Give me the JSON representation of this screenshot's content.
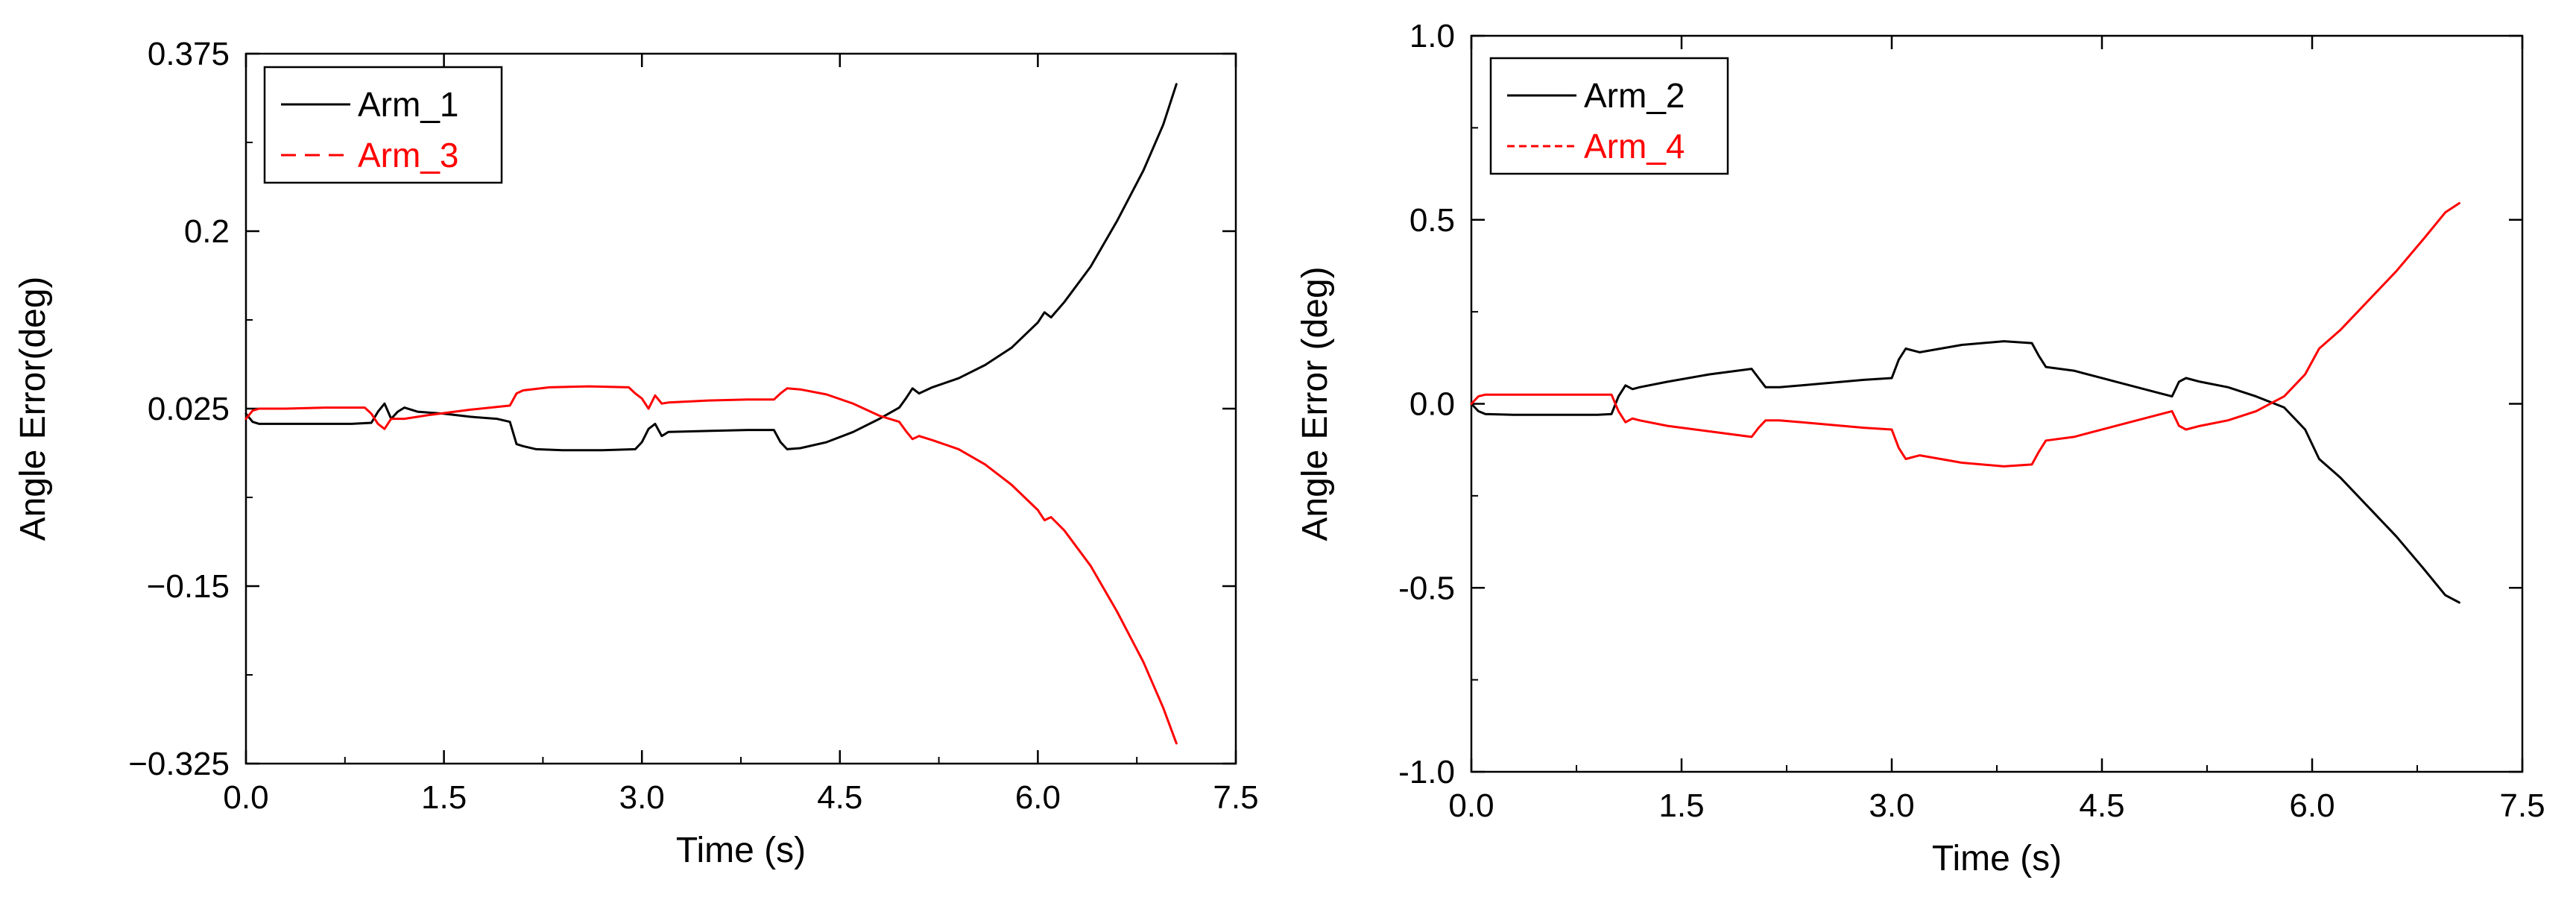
{
  "chart_data": [
    {
      "type": "line",
      "xlabel": "Time (s)",
      "ylabel": "Angle Error(deg)",
      "xlim": [
        0,
        7.5
      ],
      "ylim": [
        -0.325,
        0.375
      ],
      "xticks": [
        0.0,
        1.5,
        3.0,
        4.5,
        6.0,
        7.5
      ],
      "xtick_labels": [
        "0.0",
        "1.5",
        "3.0",
        "4.5",
        "6.0",
        "7.5"
      ],
      "yticks": [
        -0.325,
        -0.15,
        0.025,
        0.2,
        0.375
      ],
      "ytick_labels": [
        "−0.325",
        "−0.15",
        "0.025",
        "0.2",
        "0.375"
      ],
      "grid": false,
      "legend_position": "top-left",
      "series": [
        {
          "name": "Arm_1",
          "color": "#000000",
          "dash": "solid",
          "points": [
            [
              0.0,
              0.02
            ],
            [
              0.05,
              0.012
            ],
            [
              0.1,
              0.01
            ],
            [
              0.2,
              0.01
            ],
            [
              0.5,
              0.01
            ],
            [
              0.8,
              0.01
            ],
            [
              0.95,
              0.011
            ],
            [
              1.0,
              0.022
            ],
            [
              1.05,
              0.03
            ],
            [
              1.1,
              0.015
            ],
            [
              1.15,
              0.022
            ],
            [
              1.2,
              0.026
            ],
            [
              1.3,
              0.022
            ],
            [
              1.5,
              0.02
            ],
            [
              1.7,
              0.017
            ],
            [
              1.9,
              0.015
            ],
            [
              2.0,
              0.012
            ],
            [
              2.05,
              -0.01
            ],
            [
              2.1,
              -0.012
            ],
            [
              2.2,
              -0.015
            ],
            [
              2.4,
              -0.016
            ],
            [
              2.7,
              -0.016
            ],
            [
              2.95,
              -0.015
            ],
            [
              3.0,
              -0.008
            ],
            [
              3.05,
              0.005
            ],
            [
              3.1,
              0.01
            ],
            [
              3.15,
              -0.002
            ],
            [
              3.2,
              0.002
            ],
            [
              3.5,
              0.003
            ],
            [
              3.8,
              0.004
            ],
            [
              4.0,
              0.004
            ],
            [
              4.05,
              -0.008
            ],
            [
              4.1,
              -0.015
            ],
            [
              4.2,
              -0.014
            ],
            [
              4.4,
              -0.008
            ],
            [
              4.6,
              0.002
            ],
            [
              4.8,
              0.015
            ],
            [
              4.95,
              0.026
            ],
            [
              5.0,
              0.035
            ],
            [
              5.05,
              0.045
            ],
            [
              5.1,
              0.04
            ],
            [
              5.2,
              0.046
            ],
            [
              5.4,
              0.055
            ],
            [
              5.6,
              0.068
            ],
            [
              5.8,
              0.085
            ],
            [
              6.0,
              0.11
            ],
            [
              6.05,
              0.12
            ],
            [
              6.1,
              0.115
            ],
            [
              6.2,
              0.13
            ],
            [
              6.4,
              0.165
            ],
            [
              6.6,
              0.21
            ],
            [
              6.8,
              0.26
            ],
            [
              6.95,
              0.305
            ],
            [
              7.05,
              0.345
            ]
          ]
        },
        {
          "name": "Arm_3",
          "color": "#ff0000",
          "dash": "dashed",
          "points": [
            [
              0.0,
              0.015
            ],
            [
              0.05,
              0.023
            ],
            [
              0.1,
              0.025
            ],
            [
              0.3,
              0.025
            ],
            [
              0.6,
              0.026
            ],
            [
              0.9,
              0.026
            ],
            [
              0.95,
              0.02
            ],
            [
              1.0,
              0.01
            ],
            [
              1.05,
              0.005
            ],
            [
              1.1,
              0.015
            ],
            [
              1.2,
              0.015
            ],
            [
              1.4,
              0.019
            ],
            [
              1.7,
              0.024
            ],
            [
              2.0,
              0.028
            ],
            [
              2.05,
              0.04
            ],
            [
              2.1,
              0.043
            ],
            [
              2.3,
              0.046
            ],
            [
              2.6,
              0.047
            ],
            [
              2.9,
              0.046
            ],
            [
              2.95,
              0.04
            ],
            [
              3.0,
              0.035
            ],
            [
              3.05,
              0.025
            ],
            [
              3.1,
              0.038
            ],
            [
              3.15,
              0.03
            ],
            [
              3.2,
              0.031
            ],
            [
              3.5,
              0.033
            ],
            [
              3.8,
              0.034
            ],
            [
              4.0,
              0.034
            ],
            [
              4.05,
              0.04
            ],
            [
              4.1,
              0.045
            ],
            [
              4.2,
              0.044
            ],
            [
              4.4,
              0.039
            ],
            [
              4.6,
              0.03
            ],
            [
              4.8,
              0.018
            ],
            [
              4.95,
              0.012
            ],
            [
              5.0,
              0.003
            ],
            [
              5.05,
              -0.005
            ],
            [
              5.1,
              -0.002
            ],
            [
              5.2,
              -0.006
            ],
            [
              5.4,
              -0.015
            ],
            [
              5.6,
              -0.03
            ],
            [
              5.8,
              -0.05
            ],
            [
              6.0,
              -0.075
            ],
            [
              6.05,
              -0.085
            ],
            [
              6.1,
              -0.082
            ],
            [
              6.2,
              -0.095
            ],
            [
              6.4,
              -0.13
            ],
            [
              6.6,
              -0.175
            ],
            [
              6.8,
              -0.225
            ],
            [
              6.95,
              -0.27
            ],
            [
              7.05,
              -0.305
            ]
          ]
        }
      ]
    },
    {
      "type": "line",
      "xlabel": "Time (s)",
      "ylabel": "Angle Error (deg)",
      "xlim": [
        0,
        7.5
      ],
      "ylim": [
        -1.0,
        1.0
      ],
      "xticks": [
        0.0,
        1.5,
        3.0,
        4.5,
        6.0,
        7.5
      ],
      "xtick_labels": [
        "0.0",
        "1.5",
        "3.0",
        "4.5",
        "6.0",
        "7.5"
      ],
      "yticks": [
        -1.0,
        -0.5,
        0.0,
        0.5,
        1.0
      ],
      "ytick_labels": [
        "-1.0",
        "-0.5",
        "0.0",
        "0.5",
        "1.0"
      ],
      "grid": false,
      "legend_position": "top-left",
      "series": [
        {
          "name": "Arm_2",
          "color": "#000000",
          "dash": "solid",
          "points": [
            [
              0.0,
              0.0
            ],
            [
              0.05,
              -0.02
            ],
            [
              0.1,
              -0.028
            ],
            [
              0.3,
              -0.03
            ],
            [
              0.6,
              -0.03
            ],
            [
              0.9,
              -0.03
            ],
            [
              1.0,
              -0.028
            ],
            [
              1.05,
              0.02
            ],
            [
              1.1,
              0.05
            ],
            [
              1.15,
              0.04
            ],
            [
              1.2,
              0.045
            ],
            [
              1.4,
              0.06
            ],
            [
              1.7,
              0.08
            ],
            [
              2.0,
              0.095
            ],
            [
              2.05,
              0.07
            ],
            [
              2.1,
              0.045
            ],
            [
              2.2,
              0.045
            ],
            [
              2.5,
              0.055
            ],
            [
              2.8,
              0.065
            ],
            [
              3.0,
              0.07
            ],
            [
              3.05,
              0.12
            ],
            [
              3.1,
              0.15
            ],
            [
              3.2,
              0.14
            ],
            [
              3.5,
              0.16
            ],
            [
              3.8,
              0.17
            ],
            [
              4.0,
              0.165
            ],
            [
              4.05,
              0.13
            ],
            [
              4.1,
              0.1
            ],
            [
              4.3,
              0.09
            ],
            [
              4.6,
              0.06
            ],
            [
              4.9,
              0.03
            ],
            [
              5.0,
              0.02
            ],
            [
              5.05,
              0.06
            ],
            [
              5.1,
              0.07
            ],
            [
              5.2,
              0.06
            ],
            [
              5.4,
              0.045
            ],
            [
              5.6,
              0.02
            ],
            [
              5.8,
              -0.01
            ],
            [
              5.95,
              -0.07
            ],
            [
              6.05,
              -0.15
            ],
            [
              6.2,
              -0.2
            ],
            [
              6.4,
              -0.28
            ],
            [
              6.6,
              -0.36
            ],
            [
              6.8,
              -0.45
            ],
            [
              6.95,
              -0.52
            ],
            [
              7.05,
              -0.54
            ]
          ]
        },
        {
          "name": "Arm_4",
          "color": "#ff0000",
          "dash": "dashed",
          "points": [
            [
              0.0,
              0.0
            ],
            [
              0.05,
              0.02
            ],
            [
              0.1,
              0.025
            ],
            [
              0.3,
              0.025
            ],
            [
              0.6,
              0.025
            ],
            [
              0.9,
              0.025
            ],
            [
              1.0,
              0.025
            ],
            [
              1.05,
              -0.02
            ],
            [
              1.1,
              -0.05
            ],
            [
              1.15,
              -0.04
            ],
            [
              1.2,
              -0.045
            ],
            [
              1.4,
              -0.06
            ],
            [
              1.7,
              -0.075
            ],
            [
              2.0,
              -0.09
            ],
            [
              2.05,
              -0.065
            ],
            [
              2.1,
              -0.045
            ],
            [
              2.2,
              -0.045
            ],
            [
              2.5,
              -0.055
            ],
            [
              2.8,
              -0.065
            ],
            [
              3.0,
              -0.07
            ],
            [
              3.05,
              -0.12
            ],
            [
              3.1,
              -0.15
            ],
            [
              3.2,
              -0.14
            ],
            [
              3.5,
              -0.16
            ],
            [
              3.8,
              -0.17
            ],
            [
              4.0,
              -0.165
            ],
            [
              4.05,
              -0.13
            ],
            [
              4.1,
              -0.1
            ],
            [
              4.3,
              -0.09
            ],
            [
              4.6,
              -0.06
            ],
            [
              4.9,
              -0.03
            ],
            [
              5.0,
              -0.02
            ],
            [
              5.05,
              -0.06
            ],
            [
              5.1,
              -0.07
            ],
            [
              5.2,
              -0.06
            ],
            [
              5.4,
              -0.045
            ],
            [
              5.6,
              -0.02
            ],
            [
              5.8,
              0.02
            ],
            [
              5.95,
              0.08
            ],
            [
              6.05,
              0.15
            ],
            [
              6.2,
              0.2
            ],
            [
              6.4,
              0.28
            ],
            [
              6.6,
              0.36
            ],
            [
              6.8,
              0.45
            ],
            [
              6.95,
              0.52
            ],
            [
              7.05,
              0.545
            ]
          ]
        }
      ]
    }
  ]
}
